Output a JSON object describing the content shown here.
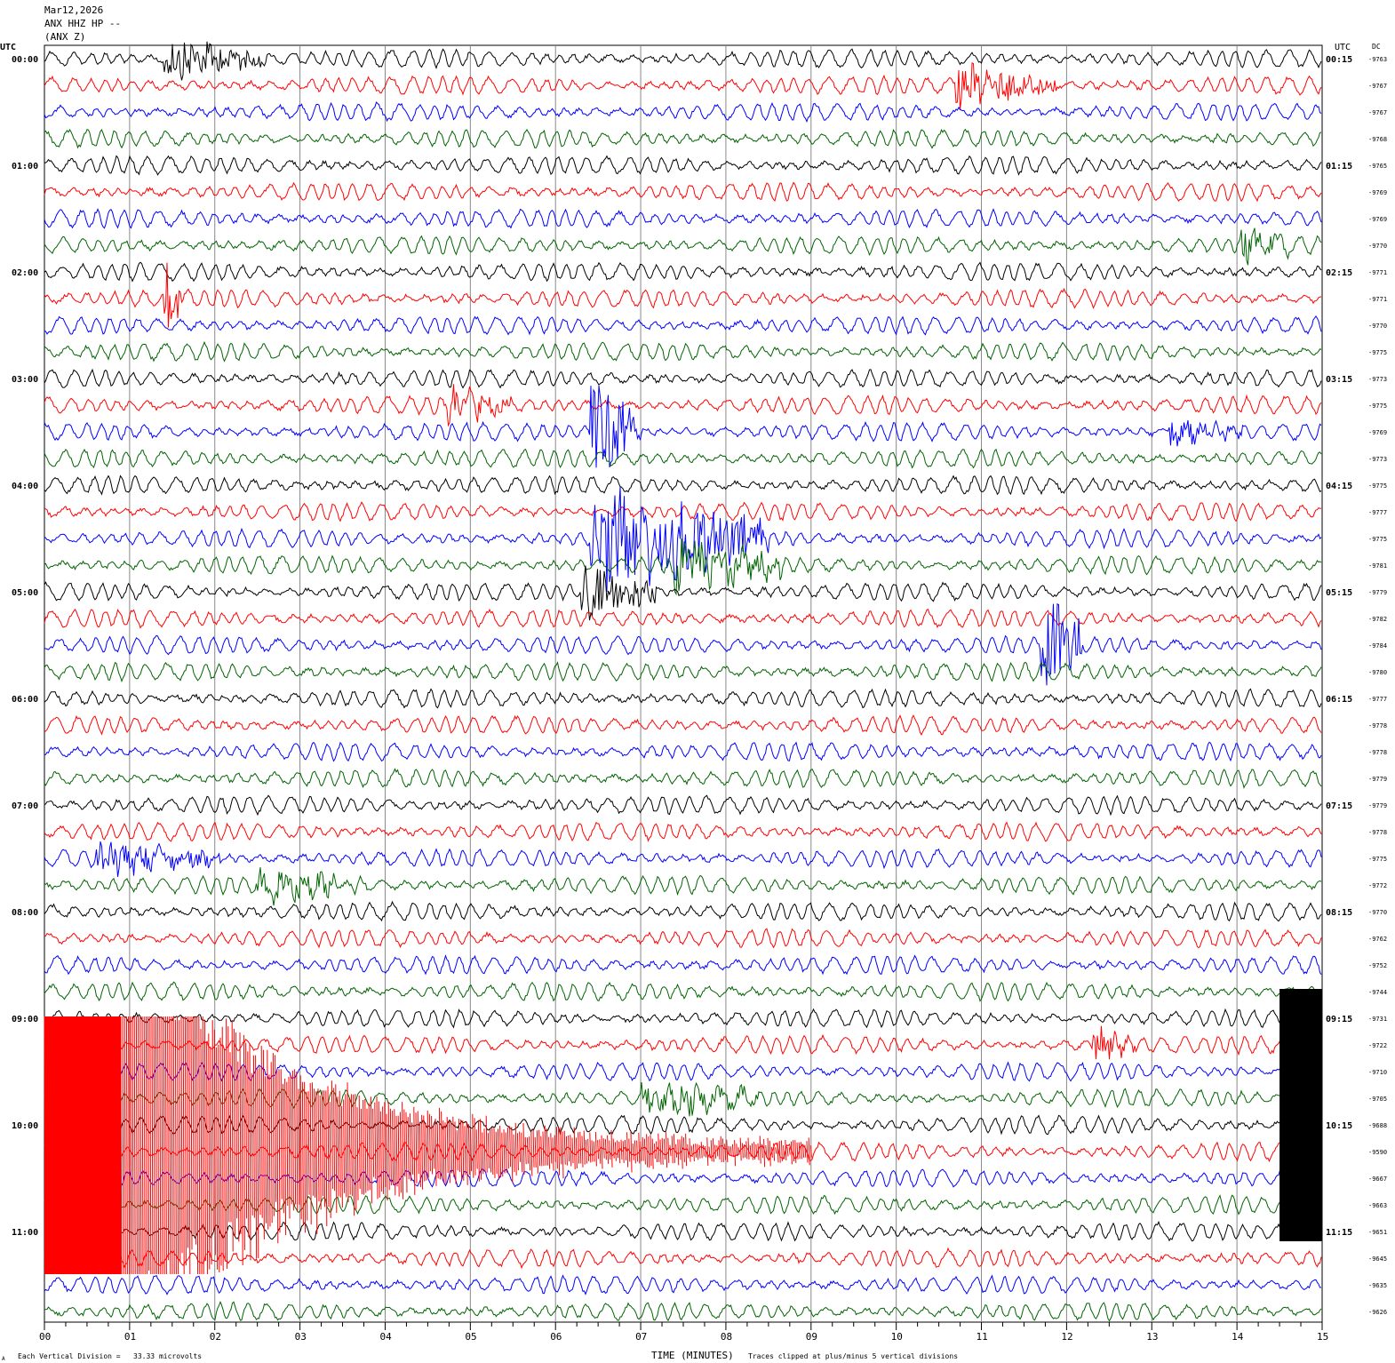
{
  "header": {
    "date": "Mar12,2026",
    "channel": "ANX HHZ HP --",
    "station": "(ANX Z)"
  },
  "left_axis_title": "UTC",
  "right_axis_title": "UTC",
  "dc_title": "DC",
  "footer": {
    "scale_note": "Each Vertical Division =   33.33 microvolts",
    "xlabel": "TIME (MINUTES)",
    "clip_note": "Traces clipped at plus/minus 5 vertical divisions",
    "corner_mark": "A"
  },
  "chart_data": {
    "type": "line",
    "subtype": "helicorder",
    "xlabel": "TIME (MINUTES)",
    "xlim": [
      0,
      15
    ],
    "x_ticks": [
      "00",
      "01",
      "02",
      "03",
      "04",
      "05",
      "06",
      "07",
      "08",
      "09",
      "10",
      "11",
      "12",
      "13",
      "14",
      "15"
    ],
    "grid": "vertical lines every minute",
    "trace_colors": [
      "#000000",
      "#ff0000",
      "#0000ff",
      "#006400"
    ],
    "left_labels": [
      "00:00",
      "01:00",
      "02:00",
      "03:00",
      "04:00",
      "05:00",
      "06:00",
      "07:00",
      "08:00",
      "09:00",
      "10:00",
      "11:00"
    ],
    "right_labels": [
      "00:15",
      "01:15",
      "02:15",
      "03:15",
      "04:15",
      "05:15",
      "06:15",
      "07:15",
      "08:15",
      "09:15",
      "10:15",
      "11:15"
    ],
    "dc_offsets": [
      "-9763",
      "-9767",
      "-9767",
      "-9768",
      "-9765",
      "-9769",
      "-9769",
      "-9770",
      "-9771",
      "-9771",
      "-9770",
      "-9775",
      "-9773",
      "-9775",
      "-9769",
      "-9773",
      "-9775",
      "-9777",
      "-9775",
      "-9781",
      "-9779",
      "-9782",
      "-9784",
      "-9780",
      "-9777",
      "-9778",
      "-9778",
      "-9779",
      "-9779",
      "-9778",
      "-9775",
      "-9772",
      "-9770",
      "-9762",
      "-9752",
      "-9744",
      "-9731",
      "-9722",
      "-9710",
      "-9705",
      "-9688",
      "-9590",
      "-9667",
      "-9663",
      "-9651",
      "-9645",
      "-9635",
      "-9626"
    ],
    "events": [
      {
        "row": 0,
        "start_min": 1.4,
        "end_min": 2.6,
        "amp": 2
      },
      {
        "row": 1,
        "start_min": 10.7,
        "end_min": 11.9,
        "amp": 2
      },
      {
        "row": 7,
        "start_min": 14.0,
        "end_min": 14.6,
        "amp": 1.6
      },
      {
        "row": 9,
        "start_min": 1.4,
        "end_min": 1.6,
        "amp": 4
      },
      {
        "row": 13,
        "start_min": 4.7,
        "end_min": 5.5,
        "amp": 1.5
      },
      {
        "row": 14,
        "start_min": 13.2,
        "end_min": 14.1,
        "amp": 1.5
      },
      {
        "row": 14,
        "start_min": 6.4,
        "end_min": 7.0,
        "amp": 5
      },
      {
        "row": 18,
        "start_min": 6.4,
        "end_min": 8.5,
        "amp": 5
      },
      {
        "row": 19,
        "start_min": 7.3,
        "end_min": 8.7,
        "amp": 2.5
      },
      {
        "row": 20,
        "start_min": 6.3,
        "end_min": 7.2,
        "amp": 3
      },
      {
        "row": 22,
        "start_min": 11.7,
        "end_min": 12.2,
        "amp": 5
      },
      {
        "row": 30,
        "start_min": 0.6,
        "end_min": 2.1,
        "amp": 1.4
      },
      {
        "row": 31,
        "start_min": 2.5,
        "end_min": 3.8,
        "amp": 1.6
      },
      {
        "row": 37,
        "start_min": 12.3,
        "end_min": 12.8,
        "amp": 1.5
      },
      {
        "row": 39,
        "start_min": 7.0,
        "end_min": 8.4,
        "amp": 1.4
      }
    ],
    "clipped_spans": [
      {
        "rows": [
          36,
          45
        ],
        "color": "#ff0000",
        "start_min": 0,
        "decay_end_min": 9
      },
      {
        "rows": [
          35,
          44
        ],
        "color": "#000000",
        "start_min": 14.5,
        "end_min": 15
      }
    ]
  }
}
